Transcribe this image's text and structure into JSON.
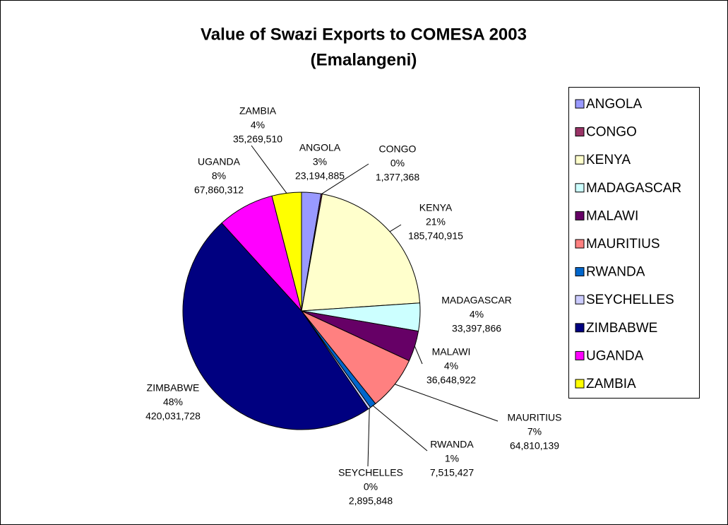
{
  "chart_data": {
    "type": "pie",
    "title": [
      "Value of Swazi Exports to COMESA 2003",
      "(Emalangeni)"
    ],
    "categories": [
      "ANGOLA",
      "CONGO",
      "KENYA",
      "MADAGASCAR",
      "MALAWI",
      "MAURITIUS",
      "RWANDA",
      "SEYCHELLES",
      "ZIMBABWE",
      "UGANDA",
      "ZAMBIA"
    ],
    "values": [
      23194885,
      1377368,
      185740915,
      33397866,
      36648922,
      64810139,
      7515427,
      2895848,
      420031728,
      67860312,
      35269510
    ],
    "value_labels": [
      "23,194,885",
      "1,377,368",
      "185,740,915",
      "33,397,866",
      "36,648,922",
      "64,810,139",
      "7,515,427",
      "2,895,848",
      "420,031,728",
      "67,860,312",
      "35,269,510"
    ],
    "percents": [
      3,
      0,
      21,
      4,
      4,
      7,
      1,
      0,
      48,
      8,
      4
    ],
    "percent_labels": [
      "3%",
      "0%",
      "21%",
      "4%",
      "4%",
      "7%",
      "1%",
      "0%",
      "48%",
      "8%",
      "4%"
    ],
    "colors": [
      "#9999FF",
      "#993366",
      "#FFFFCC",
      "#CCFFFF",
      "#660066",
      "#FF8080",
      "#0066CC",
      "#CCCCFF",
      "#000080",
      "#FF00FF",
      "#FFFF00"
    ],
    "legend": "right"
  }
}
